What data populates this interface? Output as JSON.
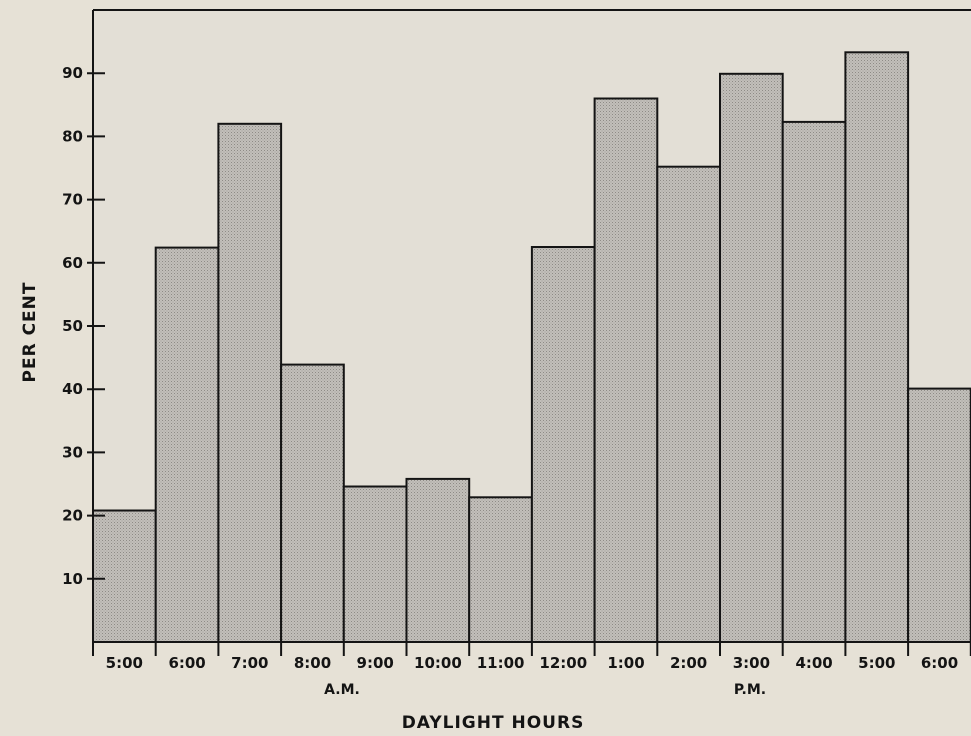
{
  "chart_data": {
    "type": "bar",
    "title": "",
    "xlabel": "DAYLIGHT HOURS",
    "ylabel": "PER CENT",
    "categories": [
      "5:00",
      "6:00",
      "7:00",
      "8:00",
      "9:00",
      "10:00",
      "11:00",
      "12:00",
      "1:00",
      "2:00",
      "3:00",
      "4:00",
      "5:00",
      "6:00"
    ],
    "values": [
      20.8,
      62.4,
      82.0,
      43.9,
      24.6,
      25.8,
      22.9,
      62.5,
      86.0,
      75.2,
      89.9,
      82.3,
      93.3,
      40.1
    ],
    "ylim": [
      0,
      100
    ],
    "yticks": [
      10,
      20,
      30,
      40,
      50,
      60,
      70,
      80,
      90
    ],
    "period_labels": [
      "A.M.",
      "P.M."
    ],
    "grid": false,
    "bar_fill": "#bdbab5",
    "background": "#e6e1d6",
    "line_color": "#141414"
  }
}
